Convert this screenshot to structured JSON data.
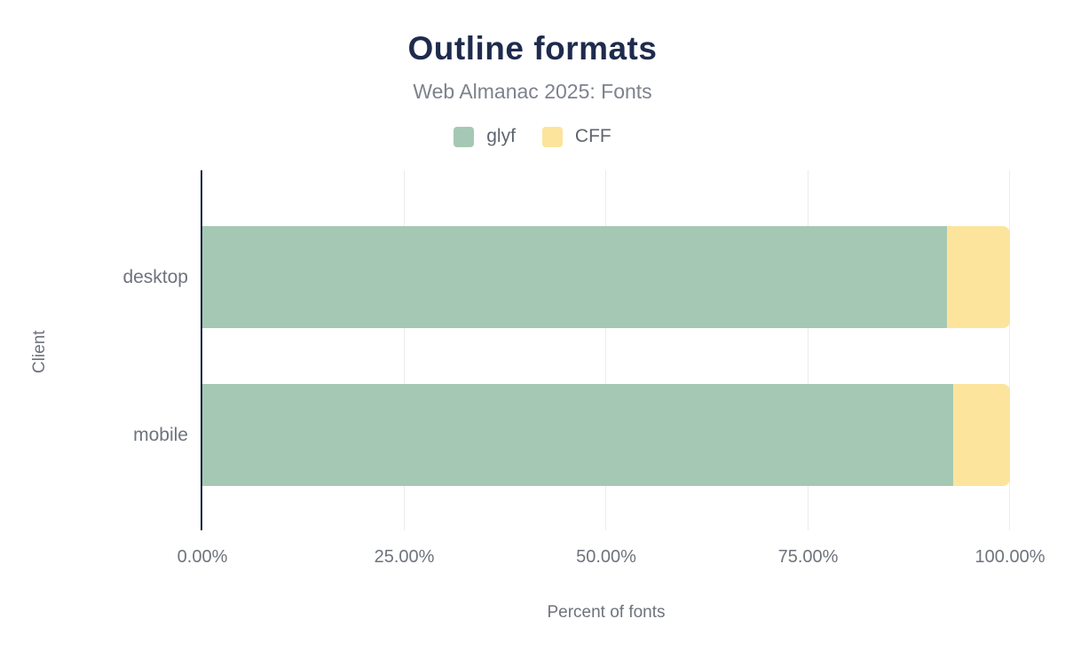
{
  "chart_data": {
    "type": "bar",
    "orientation": "horizontal",
    "stacked": true,
    "title": "Outline formats",
    "subtitle": "Web Almanac 2025: Fonts",
    "xlabel": "Percent of fonts",
    "ylabel": "Client",
    "categories": [
      "desktop",
      "mobile"
    ],
    "series": [
      {
        "name": "glyf",
        "color": "#a5c8b5",
        "values": [
          92.2,
          93.0
        ]
      },
      {
        "name": "CFF",
        "color": "#fce49c",
        "values": [
          7.8,
          7.0
        ]
      }
    ],
    "xlim": [
      0,
      100
    ],
    "xticks": [
      {
        "value": 0,
        "label": "0.00%"
      },
      {
        "value": 25,
        "label": "25.00%"
      },
      {
        "value": 50,
        "label": "50.00%"
      },
      {
        "value": 75,
        "label": "75.00%"
      },
      {
        "value": 100,
        "label": "100.00%"
      }
    ],
    "grid": "vertical",
    "legend_position": "top",
    "colors": {
      "title_text": "#1e2b4d",
      "axis_line": "#1b2642",
      "muted_text": "#6e737c",
      "gridline": "#ececec"
    }
  }
}
